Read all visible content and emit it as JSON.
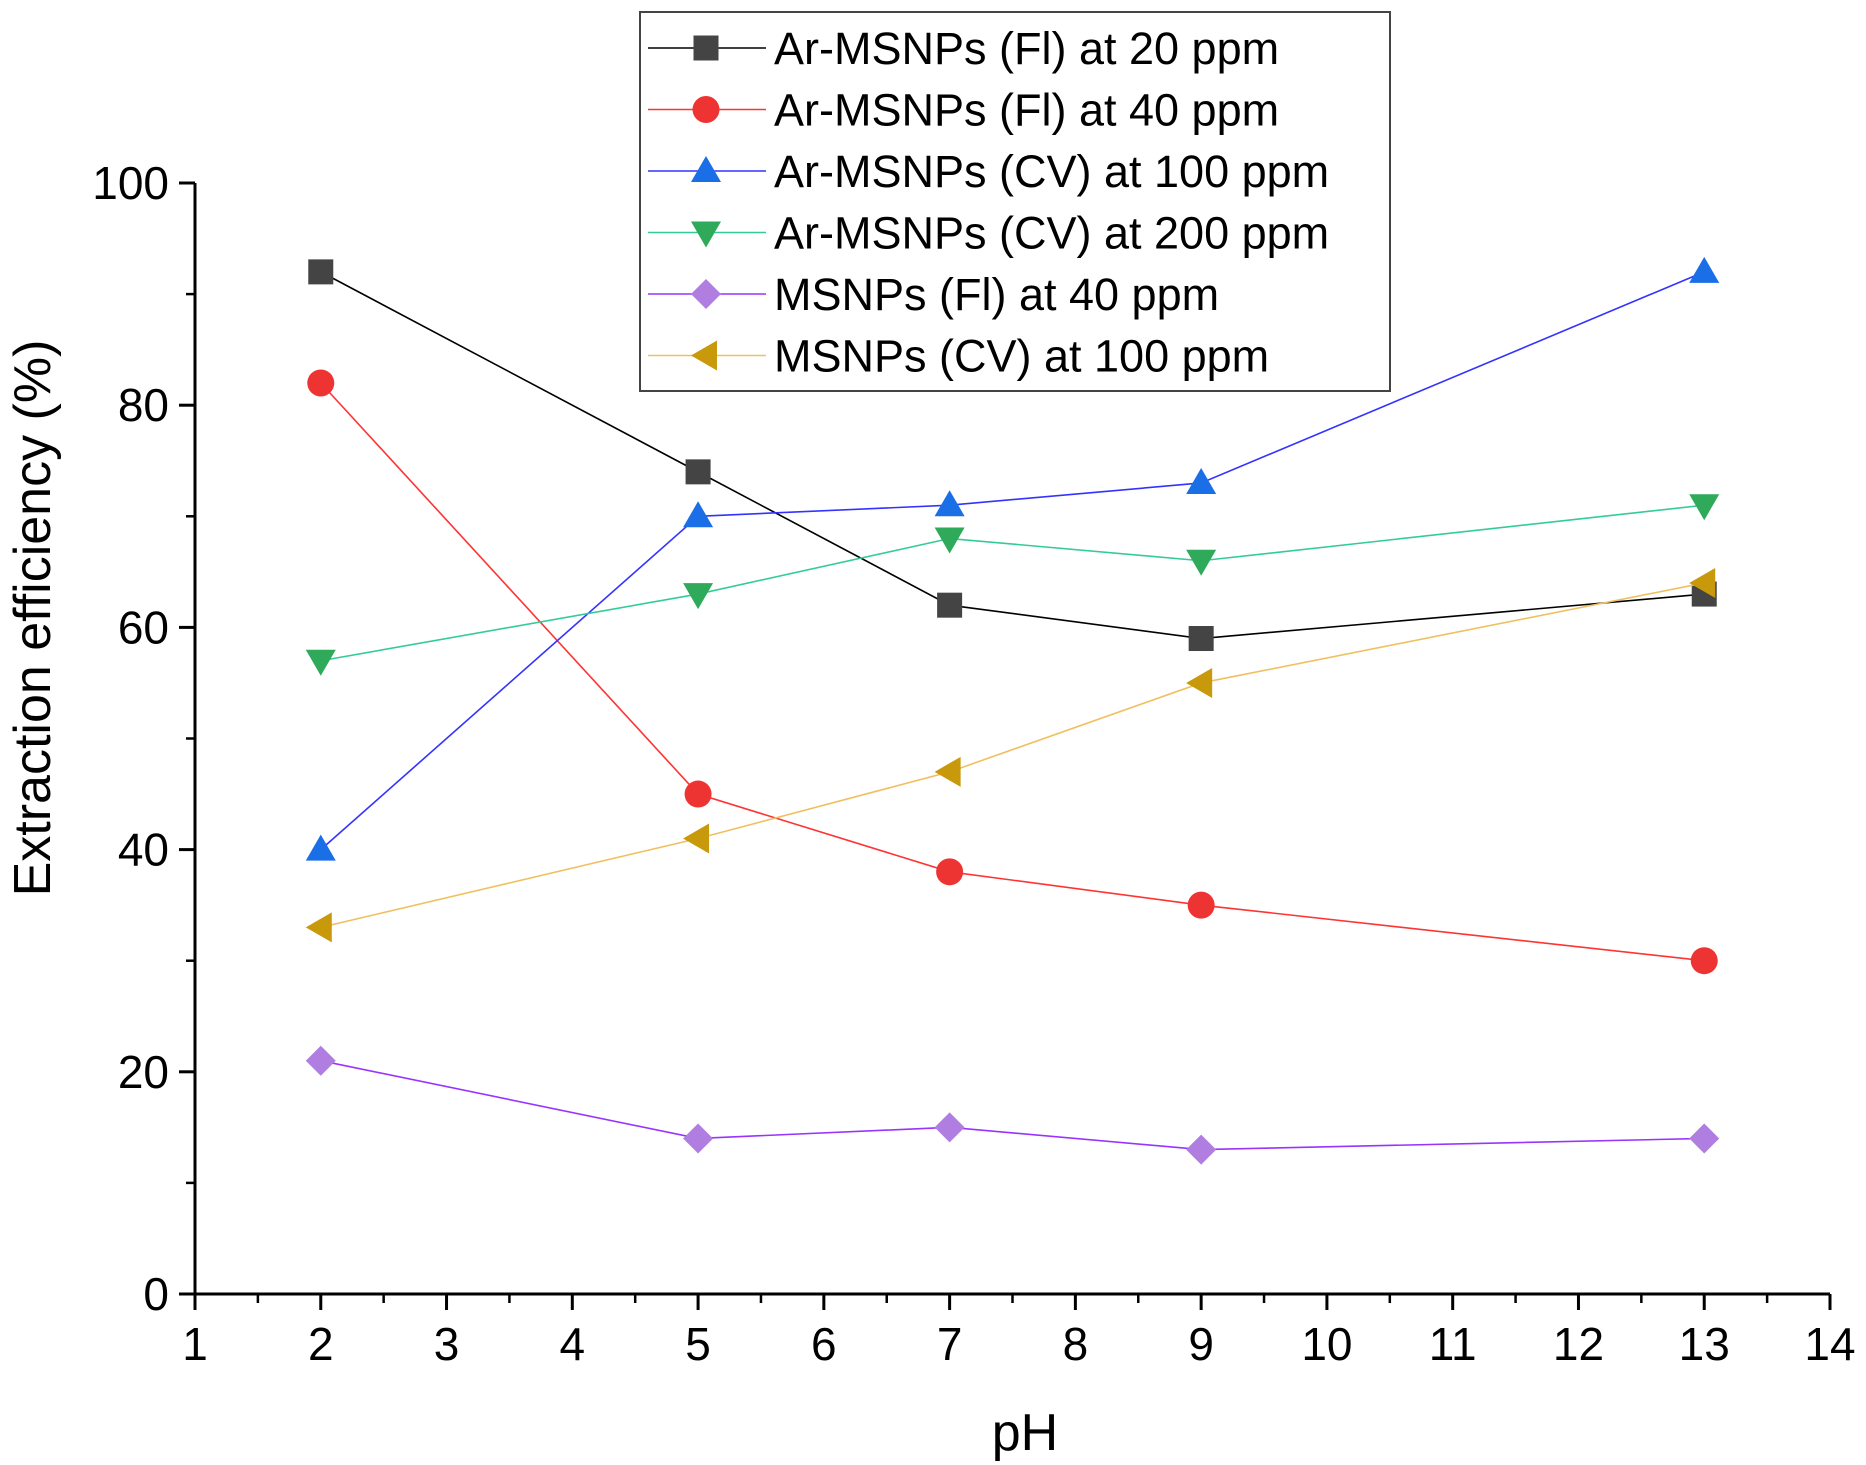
{
  "chart_data": {
    "type": "line",
    "title": "",
    "xlabel": "pH",
    "ylabel": "Extraction efficiency (%)",
    "xlim": [
      1,
      14
    ],
    "ylim": [
      0,
      100
    ],
    "x_ticks": [
      1,
      2,
      3,
      4,
      5,
      6,
      7,
      8,
      9,
      10,
      11,
      12,
      13,
      14
    ],
    "y_ticks": [
      0,
      20,
      40,
      60,
      80,
      100
    ],
    "x": [
      2,
      5,
      7,
      9,
      13
    ],
    "legend_position": "top-center",
    "series": [
      {
        "name": "Ar-MSNPs (Fl) at 20 ppm",
        "marker": "square",
        "color": "#000000",
        "marker_color": "#444444",
        "values": [
          92,
          74,
          62,
          59,
          63
        ]
      },
      {
        "name": "Ar-MSNPs (Fl) at 40 ppm",
        "marker": "circle",
        "color": "#ff3333",
        "marker_color": "#ee3333",
        "values": [
          82,
          45,
          38,
          35,
          30
        ]
      },
      {
        "name": "Ar-MSNPs (CV) at 100 ppm",
        "marker": "triangle-up",
        "color": "#3333ff",
        "marker_color": "#1a6ee6",
        "values": [
          40,
          70,
          71,
          73,
          92
        ]
      },
      {
        "name": "Ar-MSNPs (CV) at 200 ppm",
        "marker": "triangle-down",
        "color": "#33cc99",
        "marker_color": "#2eaa5a",
        "values": [
          57,
          63,
          68,
          66,
          71
        ]
      },
      {
        "name": "MSNPs (Fl) at 40 ppm",
        "marker": "diamond",
        "color": "#9933ff",
        "marker_color": "#b07ee0",
        "values": [
          21,
          14,
          15,
          13,
          14
        ]
      },
      {
        "name": "MSNPs (CV) at 100 ppm",
        "marker": "triangle-left",
        "color": "#f0c060",
        "marker_color": "#c8990a",
        "values": [
          33,
          41,
          47,
          55,
          64
        ]
      }
    ]
  }
}
